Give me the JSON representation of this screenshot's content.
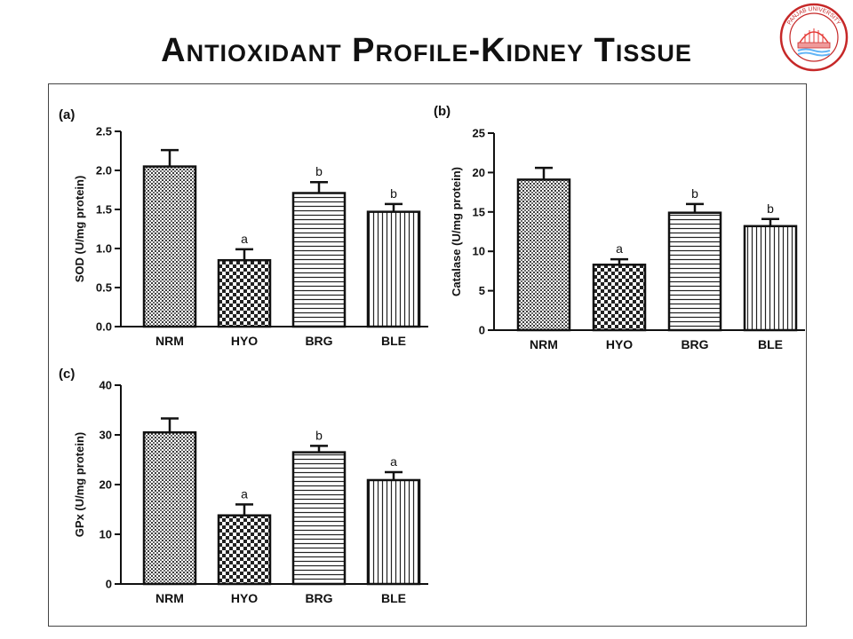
{
  "slide": {
    "title": "Antioxidant Profile-Kidney Tissue",
    "logo_text": "PANJAB UNIVERSITY"
  },
  "colors": {
    "bar_fill": "#ffffff",
    "stroke": "#111111",
    "pattern": "#222222",
    "frame": "#444444"
  },
  "chart_data": [
    {
      "panel_label": "(a)",
      "type": "bar",
      "ylabel": "SOD (U/mg protein)",
      "categories": [
        "NRM",
        "HYO",
        "BRG",
        "BLE"
      ],
      "values": [
        2.05,
        0.85,
        1.71,
        1.47
      ],
      "errors": [
        0.21,
        0.14,
        0.14,
        0.1
      ],
      "significance": [
        "",
        "a",
        "b",
        "b"
      ],
      "ylim": [
        0,
        2.5
      ],
      "yticks": [
        "0.0",
        "0.5",
        "1.0",
        "1.5",
        "2.0",
        "2.5"
      ],
      "ytick_values": [
        0,
        0.5,
        1.0,
        1.5,
        2.0,
        2.5
      ]
    },
    {
      "panel_label": "(b)",
      "type": "bar",
      "ylabel": "Catalase (U/mg protein)",
      "categories": [
        "NRM",
        "HYO",
        "BRG",
        "BLE"
      ],
      "values": [
        19.1,
        8.3,
        14.9,
        13.2
      ],
      "errors": [
        1.5,
        0.7,
        1.1,
        0.9
      ],
      "significance": [
        "",
        "a",
        "b",
        "b"
      ],
      "ylim": [
        0,
        25
      ],
      "yticks": [
        "0",
        "5",
        "10",
        "15",
        "20",
        "25"
      ],
      "ytick_values": [
        0,
        5,
        10,
        15,
        20,
        25
      ]
    },
    {
      "panel_label": "(c)",
      "type": "bar",
      "ylabel": "GPx (U/mg protein)",
      "categories": [
        "NRM",
        "HYO",
        "BRG",
        "BLE"
      ],
      "values": [
        30.5,
        13.8,
        26.5,
        20.9
      ],
      "errors": [
        2.8,
        2.2,
        1.3,
        1.6
      ],
      "significance": [
        "",
        "a",
        "b",
        "a"
      ],
      "ylim": [
        0,
        40
      ],
      "yticks": [
        "0",
        "10",
        "20",
        "30",
        "40"
      ],
      "ytick_values": [
        0,
        10,
        20,
        30,
        40
      ]
    }
  ]
}
